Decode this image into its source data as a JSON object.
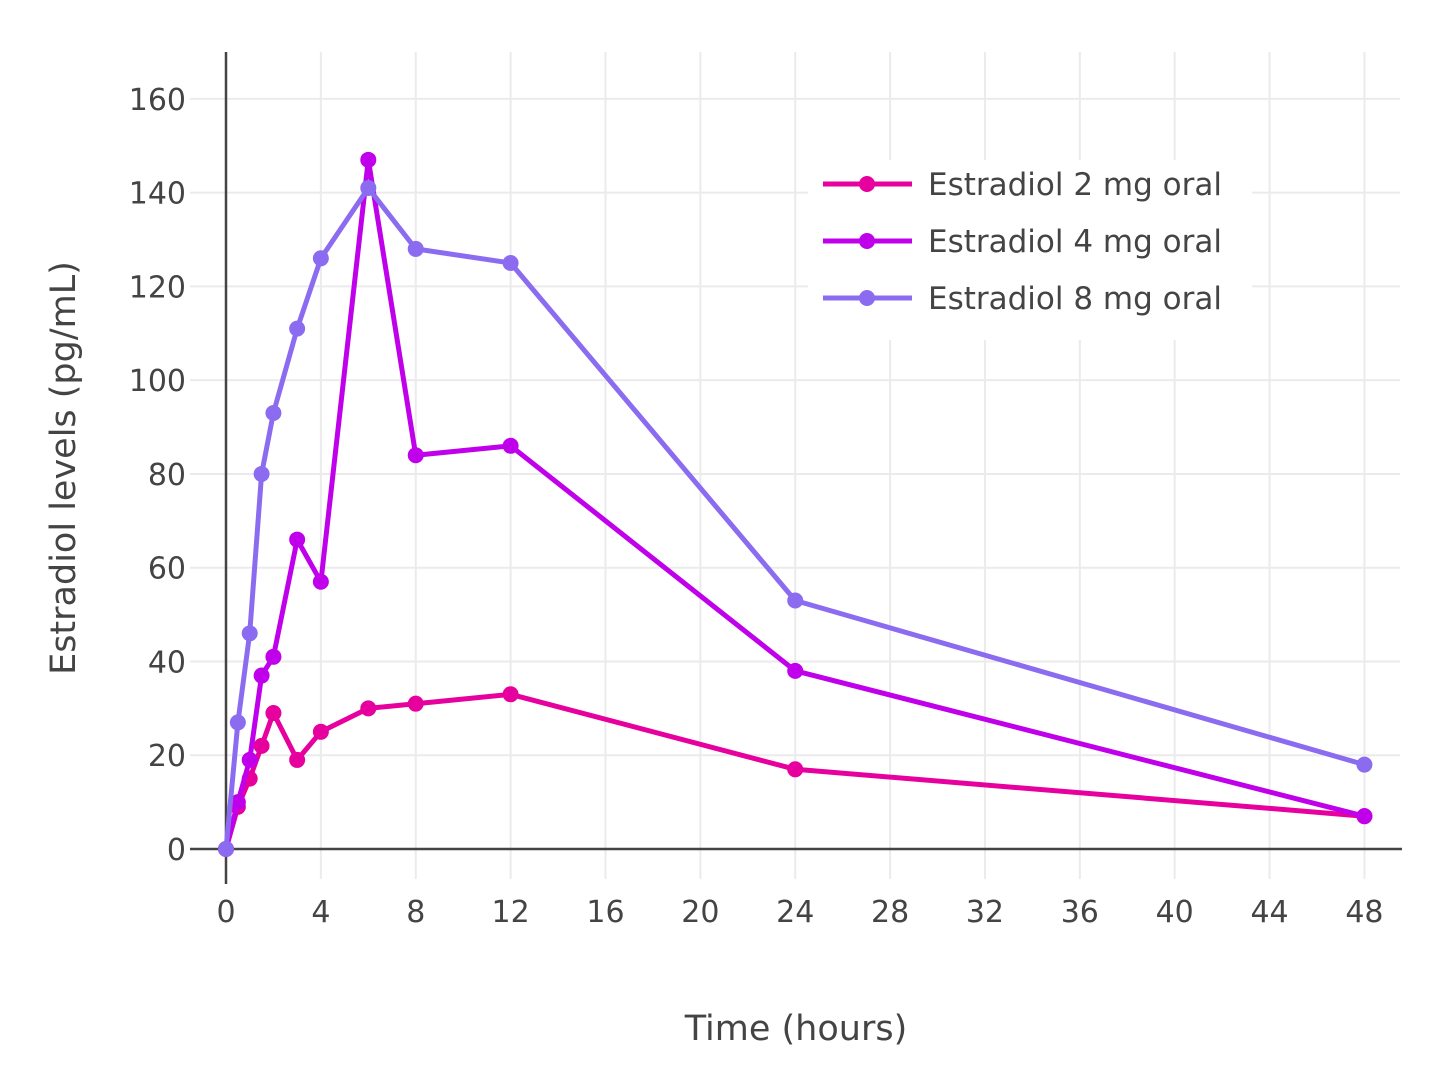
{
  "chart_data": {
    "type": "line",
    "title": "",
    "xlabel": "Time (hours)",
    "ylabel": "Estradiol levels (pg/mL)",
    "xlim": [
      0,
      49.5
    ],
    "ylim": [
      0,
      170
    ],
    "xticks": [
      0,
      4,
      8,
      12,
      16,
      20,
      24,
      28,
      32,
      36,
      40,
      44,
      48
    ],
    "yticks": [
      0,
      20,
      40,
      60,
      80,
      100,
      120,
      140,
      160
    ],
    "grid": true,
    "legend_position": "top-right",
    "series": [
      {
        "name": "Estradiol 2 mg oral",
        "color": "#e6009e",
        "x": [
          0,
          0.5,
          1,
          1.5,
          2,
          3,
          4,
          6,
          8,
          12,
          24,
          48
        ],
        "y": [
          0,
          9,
          15,
          22,
          29,
          19,
          25,
          30,
          31,
          33,
          17,
          7
        ]
      },
      {
        "name": "Estradiol 4 mg oral",
        "color": "#c000ea",
        "x": [
          0,
          0.5,
          1,
          1.5,
          2,
          3,
          4,
          6,
          8,
          12,
          24,
          48
        ],
        "y": [
          0,
          10,
          19,
          37,
          41,
          66,
          57,
          147,
          84,
          86,
          38,
          7
        ]
      },
      {
        "name": "Estradiol 8 mg oral",
        "color": "#8b6cf0",
        "x": [
          0,
          0.5,
          1,
          1.5,
          2,
          3,
          4,
          6,
          8,
          12,
          24,
          48
        ],
        "y": [
          0,
          27,
          46,
          80,
          93,
          111,
          126,
          141,
          128,
          125,
          53,
          18
        ]
      }
    ]
  }
}
